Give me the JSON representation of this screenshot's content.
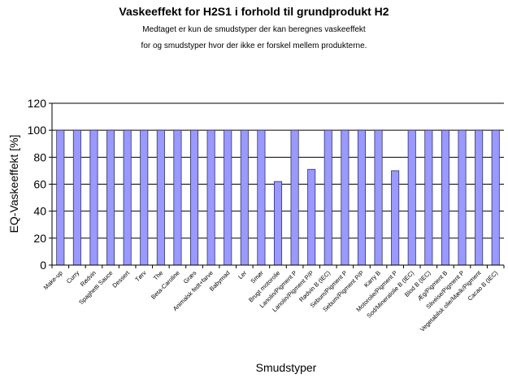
{
  "chart_data": {
    "type": "bar",
    "title": "Vaskeeffekt for H2S1 i forhold til grundprodukt H2",
    "subtitle": [
      "Medtaget er kun de smudstyper der kan beregnes vaskeeffekt",
      "for og smudstyper hvor der ikke er forskel mellem produkterne."
    ],
    "xlabel": "Smudstyper",
    "ylabel": "EQ-Vaskeeffekt [%]",
    "ylim": [
      0,
      120
    ],
    "yticks": [
      0,
      20,
      40,
      60,
      80,
      100,
      120
    ],
    "grid": true,
    "legend": "none",
    "bar_color": "#9999ff",
    "categories": [
      "Make-up",
      "Curry",
      "Rødvin",
      "Spaghetti Sauce",
      "Dessert",
      "Tørv",
      "The",
      "Beta-Caroline",
      "Græs",
      "Animalsk fedt+farve",
      "Babymad",
      "Ler",
      "Smør",
      "Brugt motorolie",
      "Lanolin/Pigment P",
      "Lanolin/Pigment P/P",
      "Rødvin B (IEC)",
      "Sebum/Pigment P",
      "Sebum/Pigment P/P",
      "Karry B",
      "Motorolie/Pigment P",
      "Sod/Mineralolie B (IEC)",
      "Blod B (IEC)",
      "Æg/Pigment B",
      "Sliveise/Pigment P",
      "Vegetabilsk olie/Mælk/Pigment",
      "Cacao B (IEC)"
    ],
    "values": [
      100,
      100,
      100,
      100,
      100,
      100,
      100,
      100,
      100,
      100,
      100,
      100,
      100,
      62,
      100,
      71,
      100,
      100,
      100,
      100,
      70,
      100,
      100,
      100,
      100,
      100,
      100
    ]
  }
}
